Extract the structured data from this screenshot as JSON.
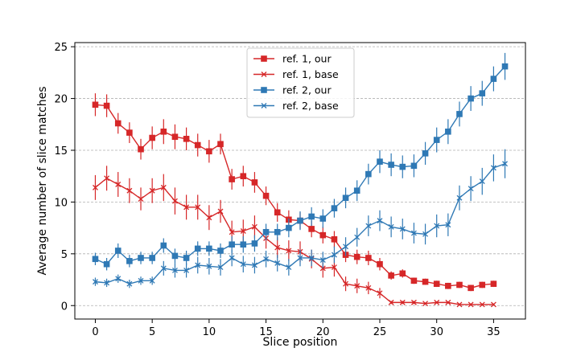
{
  "chart_data": {
    "type": "line",
    "title": "",
    "xlabel": "Slice position",
    "ylabel": "Average number of slice matches",
    "xlim": [
      -1.8,
      37.8
    ],
    "ylim": [
      -1.3,
      25.4
    ],
    "xticks": [
      0,
      5,
      10,
      15,
      20,
      25,
      30,
      35
    ],
    "yticks": [
      0,
      5,
      10,
      15,
      20,
      25
    ],
    "grid": "horizontal dashed",
    "legend_position": "top-center",
    "x": [
      0,
      1,
      2,
      3,
      4,
      5,
      6,
      7,
      8,
      9,
      10,
      11,
      12,
      13,
      14,
      15,
      16,
      17,
      18,
      19,
      20,
      21,
      22,
      23,
      24,
      25,
      26,
      27,
      28,
      29,
      30,
      31,
      32,
      33,
      34,
      35,
      36
    ],
    "series": [
      {
        "name": "ref. 1, our",
        "color": "#d62728",
        "marker": "square",
        "values": [
          19.4,
          19.3,
          17.6,
          16.7,
          15.1,
          16.2,
          16.8,
          16.3,
          16.1,
          15.5,
          14.9,
          15.6,
          12.2,
          12.5,
          11.9,
          10.6,
          9.0,
          8.3,
          8.2,
          7.4,
          6.8,
          6.4,
          4.9,
          4.7,
          4.6,
          4.0,
          2.9,
          3.1,
          2.4,
          2.3,
          2.1,
          1.9,
          2.0,
          1.7,
          2.0,
          2.1,
          null
        ],
        "errors": [
          1.1,
          1.1,
          1.0,
          1.0,
          1.0,
          1.1,
          1.2,
          1.2,
          1.1,
          1.1,
          1.1,
          1.0,
          1.0,
          1.0,
          1.0,
          0.9,
          0.9,
          0.9,
          0.8,
          0.8,
          0.8,
          0.8,
          0.7,
          0.7,
          0.7,
          0.6,
          0.4,
          0.4,
          0.3,
          0.3,
          0.3,
          0.3,
          0.3,
          0.3,
          0.3,
          0.3,
          null
        ]
      },
      {
        "name": "ref. 1, base",
        "color": "#d62728",
        "marker": "x",
        "values": [
          11.4,
          12.3,
          11.7,
          11.1,
          10.3,
          11.1,
          11.4,
          10.1,
          9.5,
          9.5,
          8.5,
          9.1,
          7.1,
          7.2,
          7.6,
          6.5,
          5.6,
          5.3,
          5.2,
          4.5,
          3.6,
          3.7,
          2.1,
          1.9,
          1.7,
          1.2,
          0.3,
          0.3,
          0.3,
          0.2,
          0.3,
          0.3,
          0.1,
          0.1,
          0.1,
          0.1,
          null
        ],
        "errors": [
          1.2,
          1.2,
          1.2,
          1.2,
          1.1,
          1.2,
          1.3,
          1.3,
          1.2,
          1.2,
          1.2,
          1.1,
          1.1,
          1.1,
          1.1,
          1.0,
          1.0,
          1.0,
          1.0,
          0.9,
          0.9,
          0.9,
          0.7,
          0.7,
          0.6,
          0.5,
          0.15,
          0.15,
          0.15,
          0.1,
          0.1,
          0.1,
          0.1,
          0.1,
          0.1,
          0.1,
          null
        ]
      },
      {
        "name": "ref. 2, our",
        "color": "#2f79b5",
        "marker": "square",
        "values": [
          4.5,
          4.0,
          5.3,
          4.3,
          4.6,
          4.6,
          5.8,
          4.8,
          4.6,
          5.5,
          5.5,
          5.3,
          5.9,
          5.9,
          6.0,
          7.1,
          7.1,
          7.5,
          8.2,
          8.6,
          8.4,
          9.4,
          10.4,
          11.1,
          12.7,
          13.9,
          13.6,
          13.4,
          13.5,
          14.7,
          16.0,
          16.8,
          18.5,
          20.0,
          20.5,
          21.9,
          23.1
        ],
        "errors": [
          0.6,
          0.6,
          0.7,
          0.6,
          0.6,
          0.6,
          0.7,
          0.7,
          0.7,
          0.7,
          0.7,
          0.7,
          0.8,
          0.8,
          0.8,
          0.8,
          0.8,
          0.9,
          0.9,
          0.9,
          0.9,
          0.9,
          1.0,
          1.0,
          1.0,
          1.1,
          1.1,
          1.1,
          1.1,
          1.1,
          1.2,
          1.2,
          1.2,
          1.2,
          1.2,
          1.2,
          1.3
        ]
      },
      {
        "name": "ref. 2, base",
        "color": "#2f79b5",
        "marker": "x",
        "values": [
          2.3,
          2.2,
          2.6,
          2.1,
          2.4,
          2.4,
          3.6,
          3.4,
          3.4,
          3.9,
          3.8,
          3.7,
          4.6,
          4.0,
          3.9,
          4.5,
          4.1,
          3.7,
          4.6,
          4.6,
          4.4,
          4.9,
          5.7,
          6.6,
          7.7,
          8.2,
          7.6,
          7.4,
          7.0,
          6.9,
          7.7,
          7.8,
          10.4,
          11.3,
          12.0,
          13.3,
          13.7
        ],
        "errors": [
          0.4,
          0.4,
          0.4,
          0.4,
          0.4,
          0.4,
          0.7,
          0.7,
          0.7,
          0.8,
          0.8,
          0.8,
          0.8,
          0.8,
          0.8,
          0.8,
          0.8,
          0.8,
          0.8,
          0.8,
          0.8,
          0.8,
          0.9,
          0.9,
          1.0,
          1.0,
          1.0,
          1.0,
          1.0,
          1.0,
          1.1,
          1.1,
          1.2,
          1.2,
          1.3,
          1.3,
          1.4
        ]
      }
    ]
  }
}
